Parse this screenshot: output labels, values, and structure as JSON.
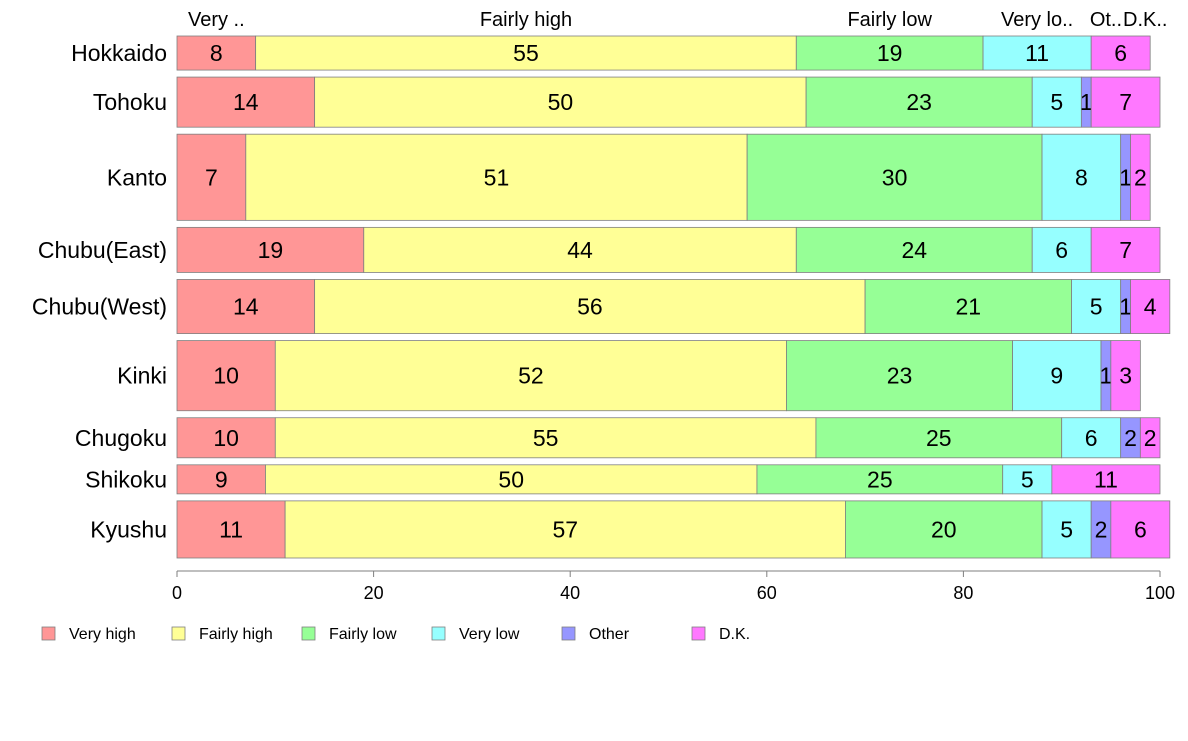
{
  "chart_data": {
    "type": "bar",
    "orientation": "horizontal",
    "stacked": true,
    "variable_width": true,
    "categories": [
      "Hokkaido",
      "Tohoku",
      "Kanto",
      "Chubu(East)",
      "Chubu(West)",
      "Kinki",
      "Chugoku",
      "Shikoku",
      "Kyushu"
    ],
    "series": [
      {
        "name": "Very high",
        "color": "#ff9696",
        "values": [
          8,
          14,
          7,
          19,
          14,
          10,
          10,
          9,
          11
        ]
      },
      {
        "name": "Fairly high",
        "color": "#ffff96",
        "values": [
          55,
          50,
          51,
          44,
          56,
          52,
          55,
          50,
          57
        ]
      },
      {
        "name": "Fairly low",
        "color": "#96ff96",
        "values": [
          19,
          23,
          30,
          24,
          21,
          23,
          25,
          25,
          20
        ]
      },
      {
        "name": "Very low",
        "color": "#96ffff",
        "values": [
          11,
          5,
          8,
          6,
          5,
          9,
          6,
          5,
          5
        ]
      },
      {
        "name": "Other",
        "color": "#9696ff",
        "values": [
          0,
          1,
          1,
          0,
          1,
          1,
          2,
          0,
          2
        ]
      },
      {
        "name": "D.K.",
        "color": "#ff78ff",
        "values": [
          6,
          7,
          2,
          7,
          4,
          3,
          2,
          11,
          6
        ]
      }
    ],
    "header_labels": [
      "Very ..",
      "Fairly high",
      "Fairly low",
      "Very lo..",
      "Ot..",
      "D.K.."
    ],
    "xlim": [
      0,
      100
    ],
    "xticks": [
      0,
      20,
      40,
      60,
      80,
      100
    ],
    "grid": false,
    "legend_position": "bottom"
  }
}
